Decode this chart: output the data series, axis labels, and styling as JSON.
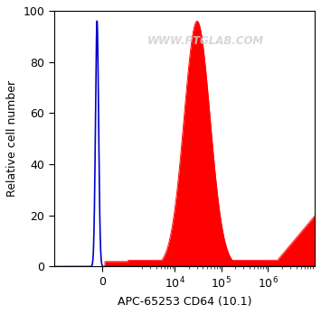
{
  "xlabel": "APC-65253 CD64 (10.1)",
  "ylabel": "Relative cell number",
  "ylim": [
    0,
    100
  ],
  "yticks": [
    0,
    20,
    40,
    60,
    80,
    100
  ],
  "watermark": "WWW.PTGLAB.COM",
  "blue_color": "#0000cc",
  "red_color": "#ff0000",
  "background_color": "#ffffff",
  "watermark_color": "#d0d0d0",
  "linthresh": 1000,
  "linscale": 0.5
}
